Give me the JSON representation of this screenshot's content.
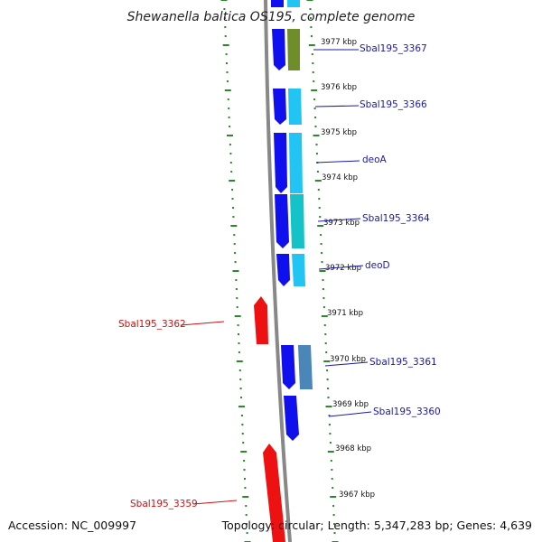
{
  "title": "Shewanella baltica OS195, complete genome",
  "footer": {
    "accession": "Accession: NC_009997",
    "summary": "Topology: circular; Length: 5,347,283 bp; Genes: 4,639"
  },
  "colors": {
    "strand_blue": "#1010ee",
    "gene_cyan": "#22c4f4",
    "gene_teal": "#14c2c8",
    "gene_olive": "#6e8e2a",
    "gene_steel": "#4a86b8",
    "strand_red": "#ee1111",
    "label_blue": "#1a1aa6",
    "label_red": "#cc1111",
    "tick_green": "#2a8a2a",
    "backbone": "#888888"
  },
  "kbp_ticks": [
    "3977 kbp",
    "3976 kbp",
    "3975 kbp",
    "3974 kbp",
    "3973 kbp",
    "3972 kbp",
    "3971 kbp",
    "3970 kbp",
    "3969 kbp",
    "3968 kbp",
    "3967 kbp"
  ],
  "gene_labels": [
    {
      "text": "Sbal195_3367",
      "strand": "blue"
    },
    {
      "text": "Sbal195_3366",
      "strand": "blue"
    },
    {
      "text": "deoA",
      "strand": "blue"
    },
    {
      "text": "Sbal195_3364",
      "strand": "blue"
    },
    {
      "text": "deoD",
      "strand": "blue"
    },
    {
      "text": "Sbal195_3362",
      "strand": "red"
    },
    {
      "text": "Sbal195_3361",
      "strand": "blue"
    },
    {
      "text": "Sbal195_3360",
      "strand": "blue"
    },
    {
      "text": "Sbal195_3359",
      "strand": "red"
    }
  ]
}
